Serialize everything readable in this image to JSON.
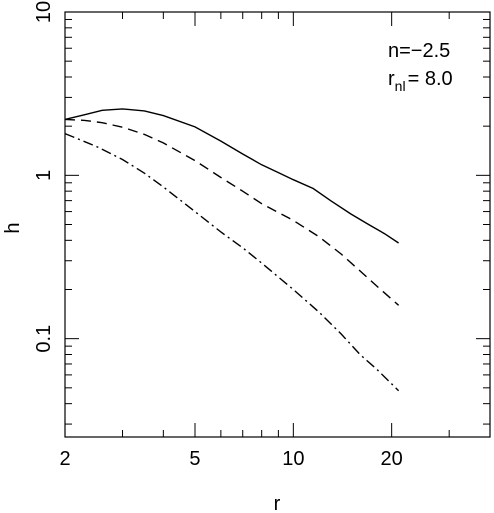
{
  "chart_data": {
    "type": "line",
    "title": "",
    "xlabel": "r",
    "ylabel": "h",
    "xscale": "log",
    "yscale": "log",
    "xlim": [
      2,
      40
    ],
    "ylim": [
      0.025,
      10
    ],
    "x_ticks": [
      {
        "value": 2,
        "label": "2"
      },
      {
        "value": 5,
        "label": "5"
      },
      {
        "value": 10,
        "label": "10"
      },
      {
        "value": 20,
        "label": "20"
      }
    ],
    "y_ticks": [
      {
        "value": 0.1,
        "label": "0.1"
      },
      {
        "value": 1,
        "label": "1"
      },
      {
        "value": 10,
        "label": "10"
      }
    ],
    "annotations": {
      "n": "n=−2.5",
      "rnl_base": "r",
      "rnl_sub": "nl",
      "rnl_value": "=  8.0"
    },
    "series": [
      {
        "style": "solid",
        "x": [
          2.0,
          2.3,
          2.6,
          3.0,
          3.5,
          4.0,
          5.0,
          6.0,
          7.0,
          8.0,
          9.0,
          10.0,
          11.5,
          13.0,
          15.0,
          17.0,
          19.0,
          21.0
        ],
        "y": [
          2.2,
          2.35,
          2.5,
          2.55,
          2.48,
          2.32,
          1.98,
          1.62,
          1.35,
          1.16,
          1.04,
          0.94,
          0.83,
          0.7,
          0.58,
          0.5,
          0.44,
          0.385
        ]
      },
      {
        "style": "dashed",
        "x": [
          2.0,
          2.3,
          2.6,
          3.0,
          3.5,
          4.0,
          5.0,
          6.0,
          7.0,
          8.0,
          10.0,
          12.0,
          14.0,
          16.0,
          18.0,
          21.0
        ],
        "y": [
          2.2,
          2.17,
          2.1,
          1.97,
          1.78,
          1.58,
          1.23,
          0.97,
          0.8,
          0.67,
          0.53,
          0.42,
          0.33,
          0.26,
          0.21,
          0.16
        ]
      },
      {
        "style": "dashdot",
        "x": [
          2.0,
          2.5,
          3.0,
          3.5,
          4.0,
          5.0,
          6.0,
          7.0,
          8.0,
          10.0,
          12.0,
          14.0,
          16.0,
          18.0,
          21.0
        ],
        "y": [
          1.8,
          1.5,
          1.25,
          1.03,
          0.85,
          0.6,
          0.45,
          0.36,
          0.29,
          0.2,
          0.145,
          0.107,
          0.08,
          0.065,
          0.048
        ]
      }
    ]
  }
}
